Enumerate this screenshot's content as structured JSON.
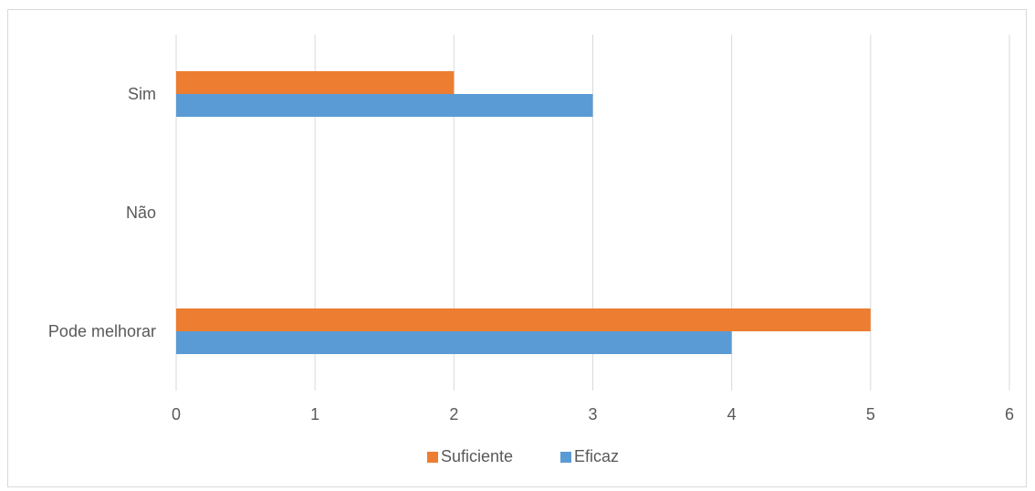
{
  "chart_data": {
    "type": "bar",
    "orientation": "horizontal",
    "categories": [
      "Sim",
      "Não",
      "Pode melhorar"
    ],
    "series": [
      {
        "name": "Suficiente",
        "values": [
          2,
          0,
          5
        ],
        "color": "#ed7d31"
      },
      {
        "name": "Eficaz",
        "values": [
          3,
          0,
          4
        ],
        "color": "#5b9bd5"
      }
    ],
    "xlim": [
      0,
      6
    ],
    "x_ticks": [
      0,
      1,
      2,
      3,
      4,
      5,
      6
    ],
    "grid": true,
    "legend_position": "bottom"
  }
}
